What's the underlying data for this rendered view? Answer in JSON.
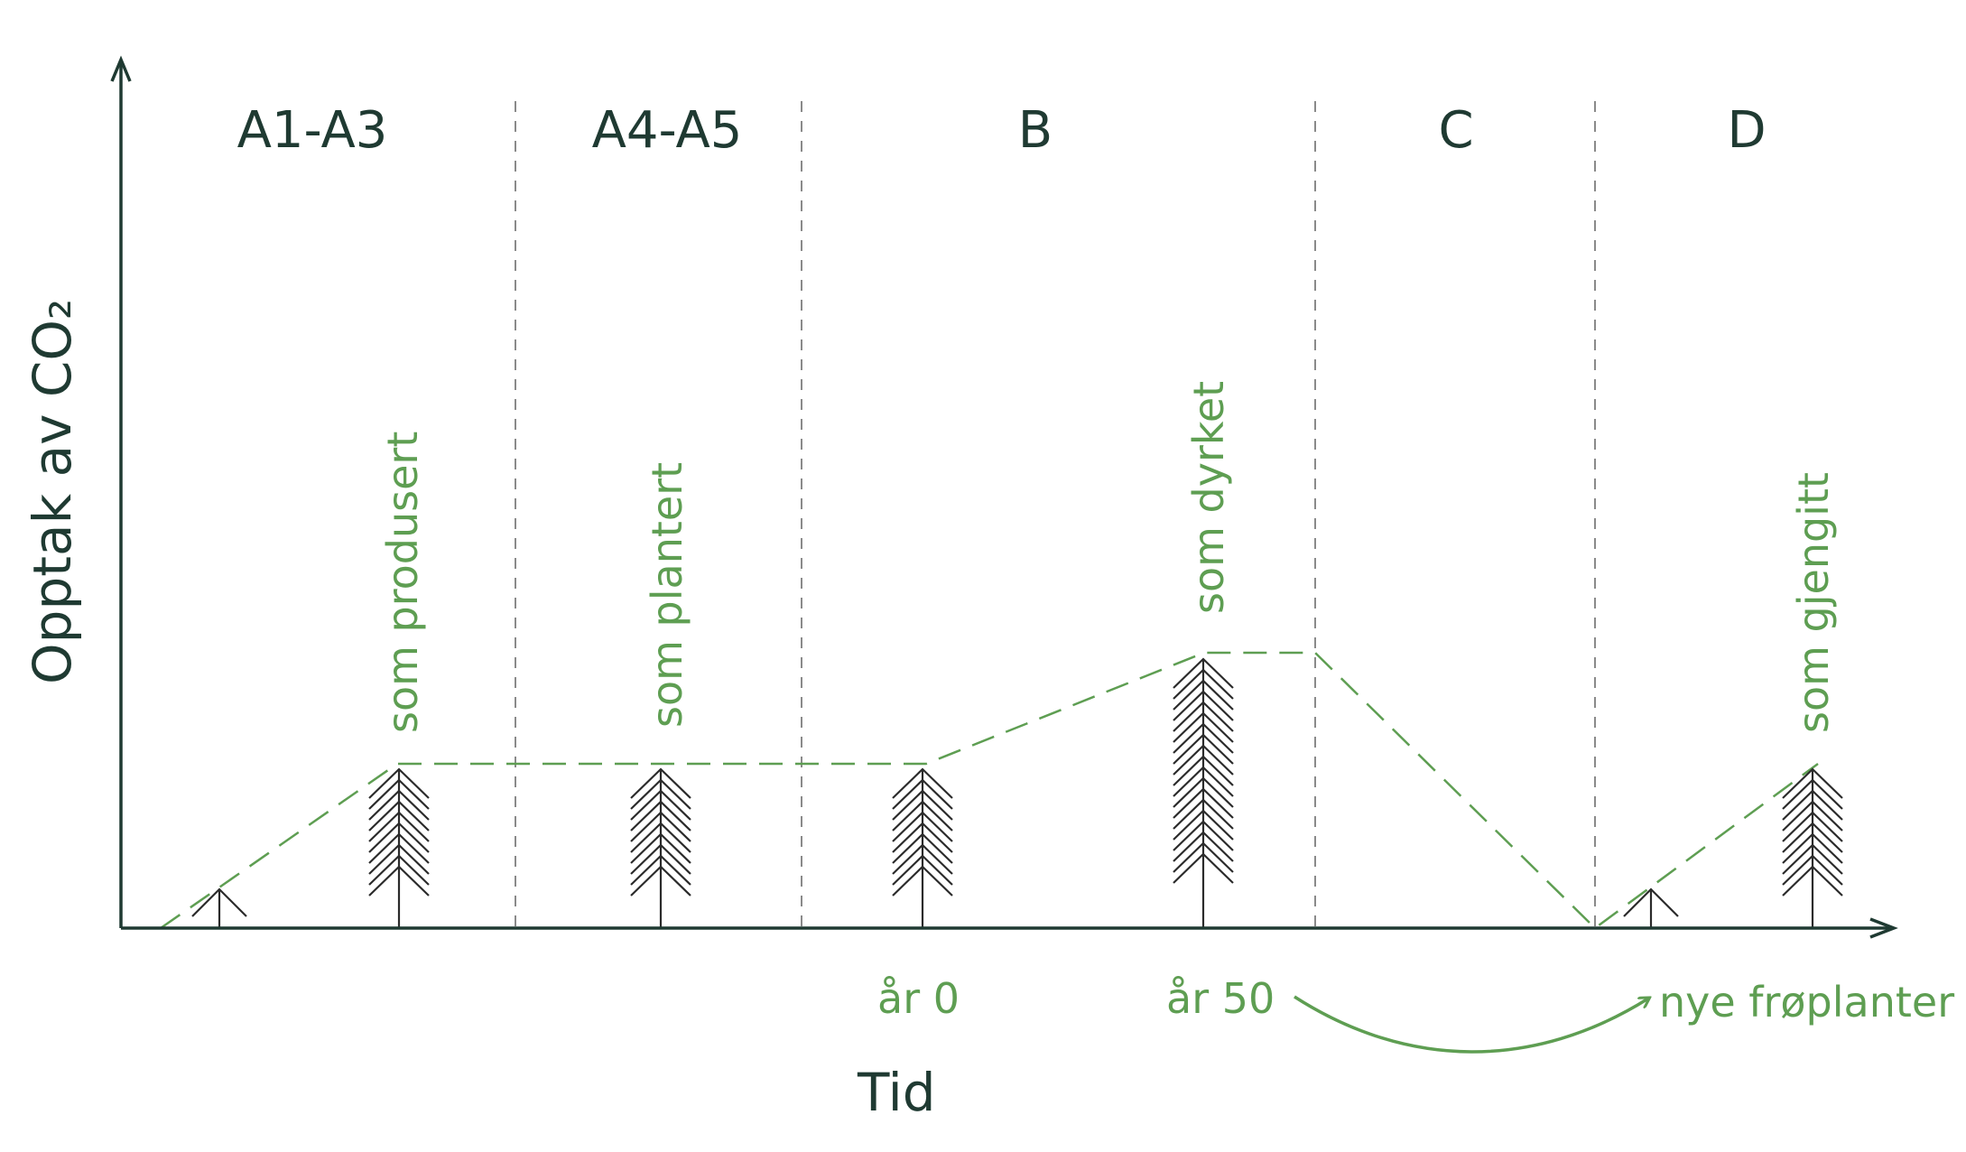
{
  "phases": [
    "A1-A3",
    "A4-A5",
    "B",
    "C",
    "D"
  ],
  "stage_labels": {
    "produced": "som produsert",
    "planted": "som plantert",
    "grown": "som dyrket",
    "regrown": "som gjengitt"
  },
  "time_labels": {
    "year0": "år 0",
    "year50": "år 50",
    "new_seedlings": "nye frøplanter"
  },
  "axes": {
    "x_label": "Tid",
    "y_label": "Opptak av CO₂"
  },
  "colors": {
    "axis": "#1f3a32",
    "accent_green": "#5e9e52",
    "divider": "#8a8a8a",
    "tree": "#2b2b2b"
  }
}
